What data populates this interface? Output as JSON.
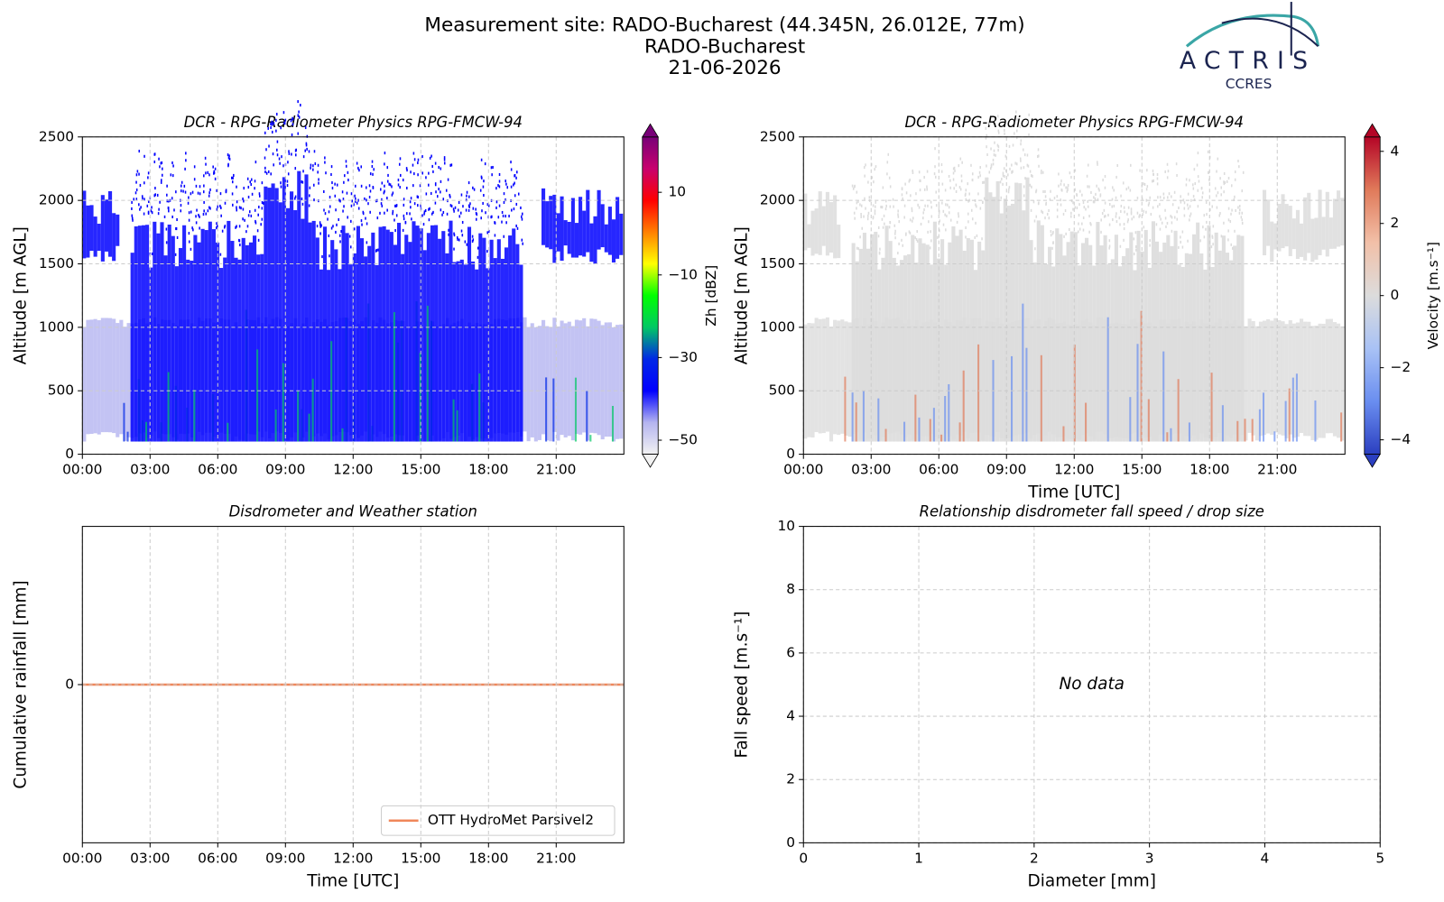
{
  "header": {
    "title_lines": [
      "Measurement site: RADO-Bucharest (44.345N, 26.012E, 77m)",
      "RADO-Bucharest",
      "21-06-2026"
    ],
    "logo": "ACTRIS",
    "logo_sub": "CCRES"
  },
  "chart_data": [
    {
      "type": "heatmap",
      "title": "DCR - RPG-Radiometer Physics RPG-FMCW-94",
      "y_label": "Altitude [m AGL]",
      "xlim": [
        0,
        24
      ],
      "xticks": [
        {
          "value": 0,
          "label": "00:00"
        },
        {
          "value": 3,
          "label": "03:00"
        },
        {
          "value": 6,
          "label": "06:00"
        },
        {
          "value": 9,
          "label": "09:00"
        },
        {
          "value": 12,
          "label": "12:00"
        },
        {
          "value": 15,
          "label": "15:00"
        },
        {
          "value": 18,
          "label": "18:00"
        },
        {
          "value": 21,
          "label": "21:00"
        }
      ],
      "ylim": [
        0,
        2500
      ],
      "yticks": [
        0,
        500,
        1000,
        1500,
        2000,
        2500
      ],
      "grid": true,
      "colorbar": {
        "label": "Zh [dBZ]",
        "lim": [
          -53.4,
          23.4
        ],
        "ticks": [
          {
            "value": -50,
            "label": "−50"
          },
          {
            "value": -30,
            "label": "−30"
          },
          {
            "value": -10,
            "label": "−10"
          },
          10
        ],
        "colors": [
          "#f2f2f2",
          "#b4b4f0",
          "#0000ff",
          "#0028e6",
          "#00c864",
          "#00ff00",
          "#ffff00",
          "#ff8000",
          "#ff0000",
          "#c8006e",
          "#780078"
        ]
      }
    },
    {
      "type": "heatmap",
      "title": "DCR - RPG-Radiometer Physics RPG-FMCW-94",
      "y_label": "Altitude [m AGL]",
      "x_label": "Time [UTC]",
      "xlim": [
        0,
        24
      ],
      "xticks": [
        {
          "value": 0,
          "label": "00:00"
        },
        {
          "value": 3,
          "label": "03:00"
        },
        {
          "value": 6,
          "label": "06:00"
        },
        {
          "value": 9,
          "label": "09:00"
        },
        {
          "value": 12,
          "label": "12:00"
        },
        {
          "value": 15,
          "label": "15:00"
        },
        {
          "value": 18,
          "label": "18:00"
        },
        {
          "value": 21,
          "label": "21:00"
        }
      ],
      "ylim": [
        0,
        2500
      ],
      "yticks": [
        0,
        500,
        1000,
        1500,
        2000,
        2500
      ],
      "grid": true,
      "colorbar": {
        "label": "Velocity [m.s⁻¹]",
        "lim": [
          -4.4,
          4.4
        ],
        "ticks": [
          {
            "value": -4,
            "label": "−4"
          },
          {
            "value": -2,
            "label": "−2"
          },
          0,
          2,
          4
        ],
        "colors": [
          "#2b3fc0",
          "#6a8ef0",
          "#a9c2f5",
          "#dcdcdc",
          "#f2c0a8",
          "#e07a5a",
          "#b40426"
        ]
      }
    },
    {
      "type": "line",
      "title": "Disdrometer and Weather station",
      "y_label": "Cumulative rainfall [mm]",
      "x_label": "Time [UTC]",
      "xlim": [
        0,
        24
      ],
      "xticks": [
        {
          "value": 0,
          "label": "00:00"
        },
        {
          "value": 3,
          "label": "03:00"
        },
        {
          "value": 6,
          "label": "06:00"
        },
        {
          "value": 9,
          "label": "09:00"
        },
        {
          "value": 12,
          "label": "12:00"
        },
        {
          "value": 15,
          "label": "15:00"
        },
        {
          "value": 18,
          "label": "18:00"
        },
        {
          "value": 21,
          "label": "21:00"
        }
      ],
      "ylim": [
        -0.055,
        0.055
      ],
      "yticks": [
        0
      ],
      "grid": true,
      "legend": "lower right",
      "x": [
        0,
        24
      ],
      "series": [
        {
          "name": "OTT HydroMet Parsivel2",
          "color": "#f0875a",
          "values": [
            0,
            0
          ]
        }
      ]
    },
    {
      "type": "scatter",
      "title": "Relationship disdrometer fall speed / drop size",
      "y_label": "Fall speed [m.s⁻¹]",
      "x_label": "Diameter [mm]",
      "xlim": [
        0,
        5
      ],
      "xticks": [
        0,
        1,
        2,
        3,
        4,
        5
      ],
      "ylim": [
        0,
        10
      ],
      "yticks": [
        0,
        2,
        4,
        6,
        8,
        10
      ],
      "grid": true,
      "annotation": "No data",
      "x": [],
      "values": []
    }
  ]
}
